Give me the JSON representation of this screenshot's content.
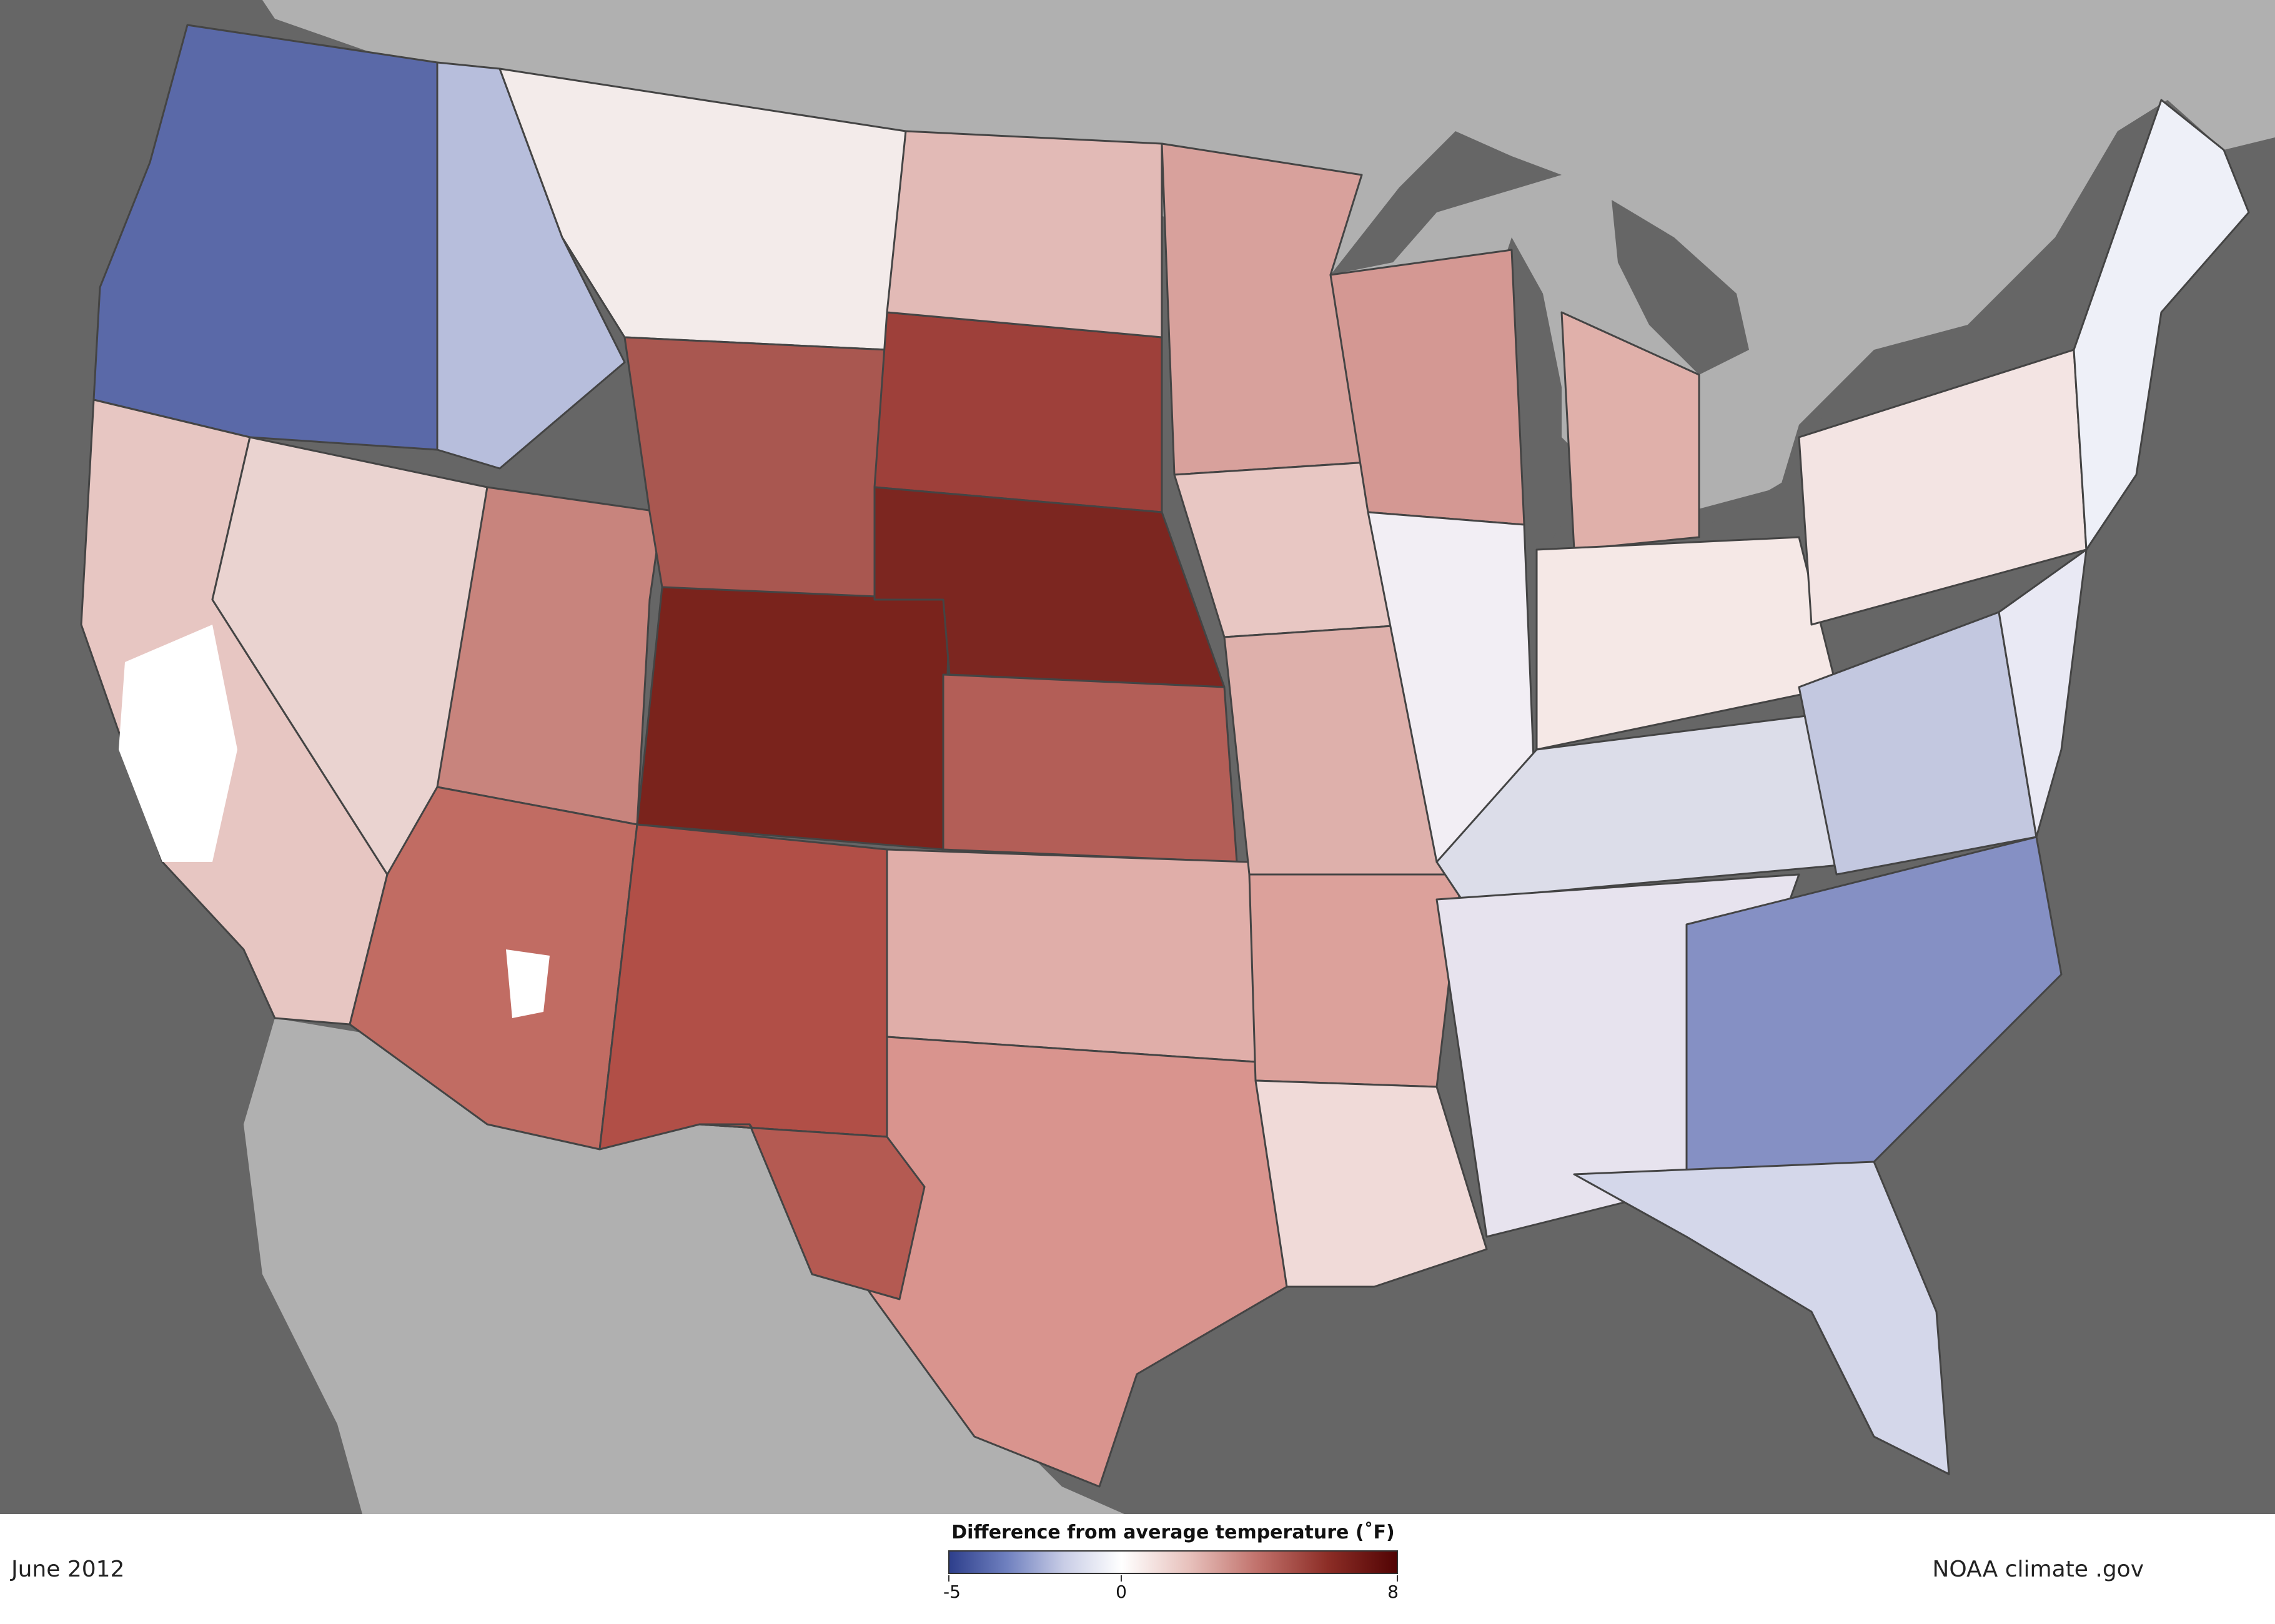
{
  "map": {
    "type": "choropleth",
    "subject": "June 2012 temperature anomaly, contiguous United States",
    "colors": {
      "ocean": "#666666",
      "land_outside": "#b0b0b0",
      "lakes": "#666666",
      "border": "#444444"
    }
  },
  "date_label": "June 2012",
  "credit": "NOAA climate .gov",
  "legend": {
    "title": "Difference from average temperature (˚F)",
    "min_label": "-5",
    "mid_label": "0",
    "max_label": "8",
    "min": -5,
    "max": 8,
    "colors": [
      "#2e3f8c",
      "#6f80bf",
      "#c9cde6",
      "#ffffff",
      "#e7c0bb",
      "#c0706a",
      "#8c2d26",
      "#520404"
    ]
  }
}
